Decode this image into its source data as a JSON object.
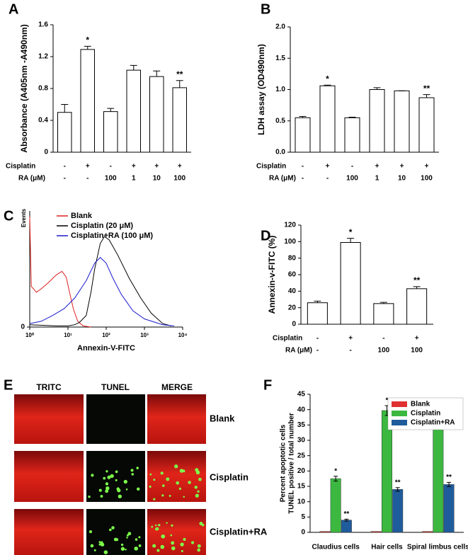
{
  "chart_data": [
    {
      "type": "bar",
      "label": "A",
      "ylabel": "Absorbance (A405nm -A490nm)",
      "values": [
        0.5,
        1.29,
        0.51,
        1.03,
        0.95,
        0.81
      ],
      "errors": [
        0.1,
        0.04,
        0.04,
        0.06,
        0.07,
        0.09
      ],
      "significance": [
        null,
        "*",
        null,
        null,
        null,
        "**"
      ],
      "conditions": [
        {
          "name": "Cisplatin",
          "values": [
            "-",
            "+",
            "-",
            "+",
            "+",
            "+"
          ]
        },
        {
          "name": "RA (μM)",
          "values": [
            "-",
            "-",
            "100",
            "1",
            "10",
            "100"
          ]
        }
      ],
      "ylim": [
        0,
        1.6
      ],
      "yticks": [
        0,
        0.4,
        0.8,
        1.2,
        1.6
      ],
      "color": "#ffffff"
    },
    {
      "type": "bar",
      "label": "B",
      "ylabel": "LDH assay (OD490nm)",
      "values": [
        0.55,
        1.06,
        0.55,
        1.0,
        0.98,
        0.87
      ],
      "errors": [
        0.02,
        0.01,
        0.01,
        0.03,
        0,
        0.05
      ],
      "significance": [
        null,
        "*",
        null,
        null,
        null,
        "**"
      ],
      "conditions": [
        {
          "name": "Cisplatin",
          "values": [
            "-",
            "+",
            "-",
            "+",
            "+",
            "+"
          ]
        },
        {
          "name": "RA (μM)",
          "values": [
            "-",
            "-",
            "100",
            "1",
            "10",
            "100"
          ]
        }
      ],
      "ylim": [
        0,
        2
      ],
      "yticks": [
        {
          "value": 0,
          "label": "0.0"
        },
        0.5,
        {
          "value": 1,
          "label": "1.0"
        },
        1.5,
        {
          "value": 2,
          "label": "2.0"
        }
      ],
      "color": "#ffffff"
    },
    {
      "type": "line",
      "label": "C",
      "ylabel": "Events",
      "xlabel": "Annexin-V-FITC",
      "xscale": "log",
      "xlim": [
        1,
        10000
      ],
      "xticks": [
        {
          "value": 1,
          "label": "10⁰"
        },
        {
          "value": 10,
          "label": "10¹"
        },
        {
          "value": 100,
          "label": "10²"
        },
        {
          "value": 1000,
          "label": "10³"
        },
        {
          "value": 10000,
          "label": "10⁴"
        }
      ],
      "ylim": [
        0,
        100
      ],
      "yticks": [
        0
      ],
      "series": [
        {
          "name": "Blank",
          "color": "#e02020",
          "x": [
            1,
            1.1,
            1.5,
            2,
            3,
            5,
            7,
            9,
            11,
            14,
            18,
            25,
            40
          ],
          "values": [
            95,
            35,
            30,
            33,
            38,
            45,
            48,
            43,
            30,
            15,
            5,
            1,
            0
          ]
        },
        {
          "name": "Cisplatin (20 μM)",
          "color": "#000000",
          "x": [
            1,
            5,
            10,
            15,
            20,
            30,
            40,
            50,
            70,
            90,
            120,
            200,
            400,
            800,
            1500,
            3000,
            5000
          ],
          "values": [
            2,
            1,
            1,
            2,
            4,
            10,
            30,
            50,
            72,
            78,
            75,
            62,
            42,
            25,
            12,
            3,
            1
          ]
        },
        {
          "name": "Cisplatin+RA (100 μM)",
          "color": "#1a1ad0",
          "x": [
            1,
            2,
            4,
            8,
            15,
            30,
            50,
            70,
            100,
            150,
            250,
            500,
            1000,
            3000,
            6000
          ],
          "values": [
            3,
            5,
            10,
            16,
            25,
            40,
            55,
            60,
            55,
            42,
            28,
            14,
            7,
            2,
            1
          ]
        }
      ]
    },
    {
      "type": "bar",
      "label": "D",
      "ylabel": "Annexin-v-FITC (%)",
      "values": [
        26,
        99,
        25,
        43
      ],
      "errors": [
        2,
        5,
        1.5,
        2.5
      ],
      "significance": [
        null,
        "*",
        null,
        "**"
      ],
      "conditions": [
        {
          "name": "Cisplatin",
          "values": [
            "-",
            "+",
            "-",
            "+"
          ]
        },
        {
          "name": "RA (μM)",
          "values": [
            "-",
            "-",
            "100",
            "100"
          ]
        }
      ],
      "ylim": [
        0,
        120
      ],
      "yticks": [
        0,
        20,
        40,
        60,
        80,
        100,
        120
      ],
      "color": "#ffffff"
    },
    {
      "type": "bar",
      "label": "F",
      "ylabel": [
        "Percent apoptotic cells",
        "TUNEL positive / total number"
      ],
      "categories": [
        "Claudius cells",
        "Hair cells",
        "Spiral limbus cells"
      ],
      "series": [
        {
          "name": "Blank",
          "color": "#e03030",
          "values": [
            0.3,
            0.3,
            0.3
          ]
        },
        {
          "name": "Cisplatin",
          "color": "#3cb840",
          "values": [
            17.5,
            39.7,
            35.6
          ],
          "errors": [
            0.8,
            1.6,
            1.5
          ],
          "significance": [
            "*",
            "*",
            "*"
          ]
        },
        {
          "name": "Cisplatin+RA",
          "color": "#1f5c9c",
          "values": [
            4.0,
            14.0,
            15.6
          ],
          "errors": [
            0.3,
            0.6,
            0.7
          ],
          "significance": [
            "**",
            "**",
            "**"
          ]
        }
      ],
      "ylim": [
        0,
        45
      ],
      "yticks": [
        0,
        5,
        10,
        15,
        20,
        25,
        30,
        35,
        40,
        45
      ]
    }
  ],
  "panel_e": {
    "label": "E",
    "columns": [
      "TRITC",
      "TUNEL",
      "MERGE"
    ],
    "rows": [
      "Blank",
      "Cisplatin",
      "Cisplatin+RA"
    ]
  }
}
